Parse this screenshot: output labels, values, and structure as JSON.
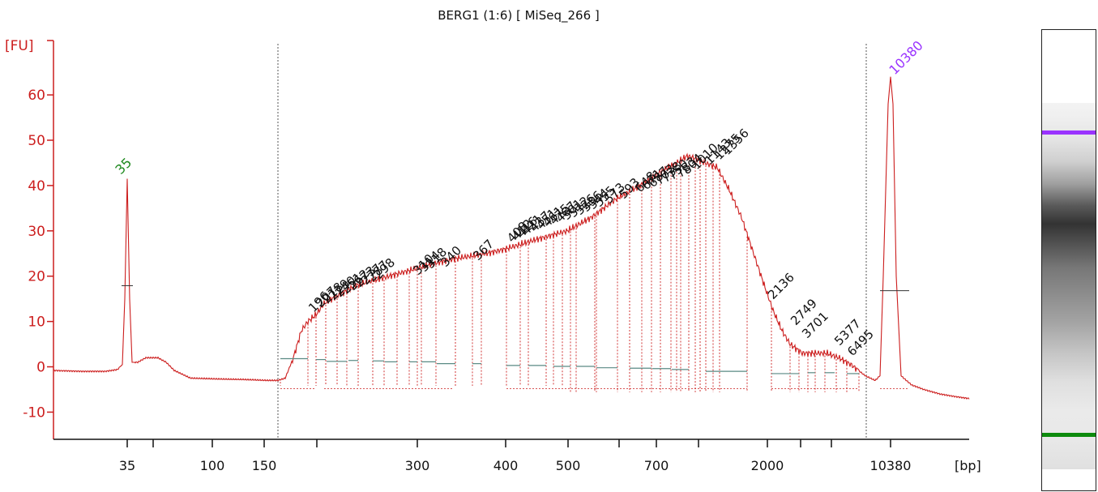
{
  "chart_data": {
    "type": "line",
    "title": "BERG1 (1:6)  [ MiSeq_266 ]",
    "ylabel": "[FU]",
    "xlabel": "[bp]",
    "ylim": [
      -16,
      72
    ],
    "y_ticks": [
      -10,
      0,
      10,
      20,
      30,
      40,
      50,
      60
    ],
    "x_ticks": [
      "35",
      "",
      "100",
      "150",
      "",
      "300",
      "400",
      "500",
      "",
      "700",
      "",
      "2000",
      "",
      "",
      "10380"
    ],
    "colors": {
      "trace": "#cc1e1e",
      "axis": "#cc1e1e",
      "lower_marker": "#1f8a1f",
      "upper_marker": "#9a33ff",
      "peak_label": "#111111"
    },
    "markers": [
      {
        "label": "35",
        "value": 41.5,
        "color": "#1f8a1f"
      },
      {
        "label": "10380",
        "value": 64,
        "color": "#9a33ff"
      }
    ],
    "peak_labels": [
      "196",
      "207",
      "218",
      "229",
      "240",
      "251",
      "262",
      "273",
      "277",
      "287",
      "298",
      "310",
      "314",
      "318",
      "340",
      "367",
      "408",
      "412",
      "416",
      "421",
      "437",
      "451",
      "461",
      "475",
      "487",
      "501",
      "512",
      "526",
      "536",
      "544",
      "555",
      "573",
      "593",
      "648",
      "671",
      "687",
      "703",
      "738",
      "750",
      "783",
      "804",
      "1010",
      "1143",
      "1275",
      "1356",
      "2136",
      "2749",
      "3701",
      "5377",
      "6495"
    ],
    "gel": {
      "upper_marker_color": "#9a33ff",
      "lower_marker_color": "#0c8a0c"
    }
  }
}
